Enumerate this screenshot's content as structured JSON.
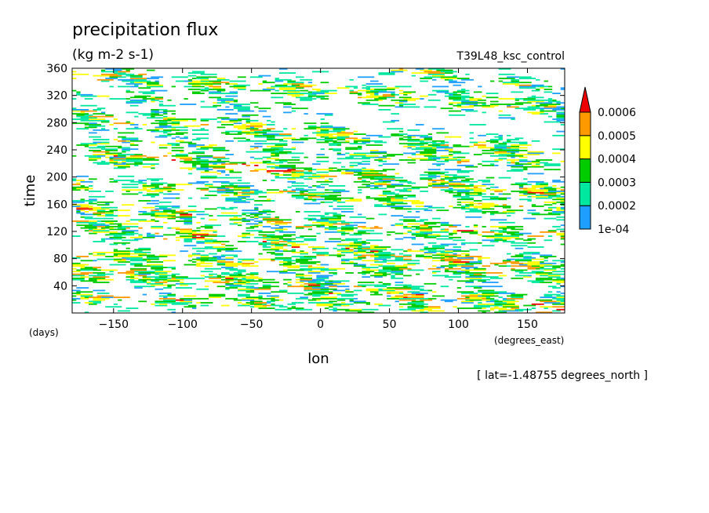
{
  "chart_data": {
    "type": "heatmap",
    "title": "precipitation flux",
    "units": "(kg m-2 s-1)",
    "experiment": "T39L48_ksc_control",
    "xlabel": "lon",
    "x_units": "(degrees_east)",
    "ylabel": "time",
    "y_units": "(days)",
    "slice_label": "[ lat=-1.48755 degrees_north ]",
    "xlim": [
      -180,
      177
    ],
    "ylim": [
      0,
      360
    ],
    "x_ticks": [
      -150,
      -100,
      -50,
      0,
      50,
      100,
      150
    ],
    "y_ticks": [
      40,
      80,
      120,
      160,
      200,
      240,
      280,
      320,
      360
    ],
    "x_tick_labels": [
      "−150",
      "−100",
      "−50",
      "0",
      "50",
      "100",
      "150"
    ],
    "y_tick_labels": [
      "40",
      "80",
      "120",
      "160",
      "200",
      "240",
      "280",
      "320",
      "360"
    ],
    "colorbar": {
      "levels": [
        0.0001,
        0.0002,
        0.0003,
        0.0004,
        0.0005,
        0.0006
      ],
      "labels": [
        "1e-04",
        "0.0002",
        "0.0003",
        "0.0004",
        "0.0005",
        "0.0006"
      ],
      "colors": [
        "#1e9fff",
        "#00e8a0",
        "#00cc00",
        "#ffff00",
        "#ff9900",
        "#ee0000"
      ],
      "extend": "max"
    },
    "bands": [
      {
        "lon0": -180,
        "t0": 352,
        "lon1": 177,
        "t1": 300,
        "w": 14,
        "i": 0.85
      },
      {
        "lon0": -180,
        "t0": 322,
        "lon1": -20,
        "t1": 300,
        "w": 8,
        "i": 0.7
      },
      {
        "lon0": -180,
        "t0": 290,
        "lon1": 177,
        "t1": 232,
        "w": 14,
        "i": 0.9
      },
      {
        "lon0": -150,
        "t0": 252,
        "lon1": 177,
        "t1": 215,
        "w": 10,
        "i": 0.75
      },
      {
        "lon0": -180,
        "t0": 236,
        "lon1": 177,
        "t1": 172,
        "w": 16,
        "i": 1.0
      },
      {
        "lon0": -180,
        "t0": 190,
        "lon1": 177,
        "t1": 150,
        "w": 12,
        "i": 0.85
      },
      {
        "lon0": -180,
        "t0": 150,
        "lon1": 177,
        "t1": 110,
        "w": 14,
        "i": 0.9
      },
      {
        "lon0": -180,
        "t0": 128,
        "lon1": 177,
        "t1": 62,
        "w": 16,
        "i": 1.0
      },
      {
        "lon0": -180,
        "t0": 84,
        "lon1": 177,
        "t1": 52,
        "w": 12,
        "i": 0.85
      },
      {
        "lon0": -180,
        "t0": 62,
        "lon1": 177,
        "t1": 8,
        "w": 16,
        "i": 1.0
      },
      {
        "lon0": -180,
        "t0": 22,
        "lon1": 177,
        "t1": 2,
        "w": 10,
        "i": 0.8
      },
      {
        "lon0": 40,
        "t0": 360,
        "lon1": 177,
        "t1": 330,
        "w": 10,
        "i": 0.7
      }
    ],
    "background_density": 0.05
  }
}
